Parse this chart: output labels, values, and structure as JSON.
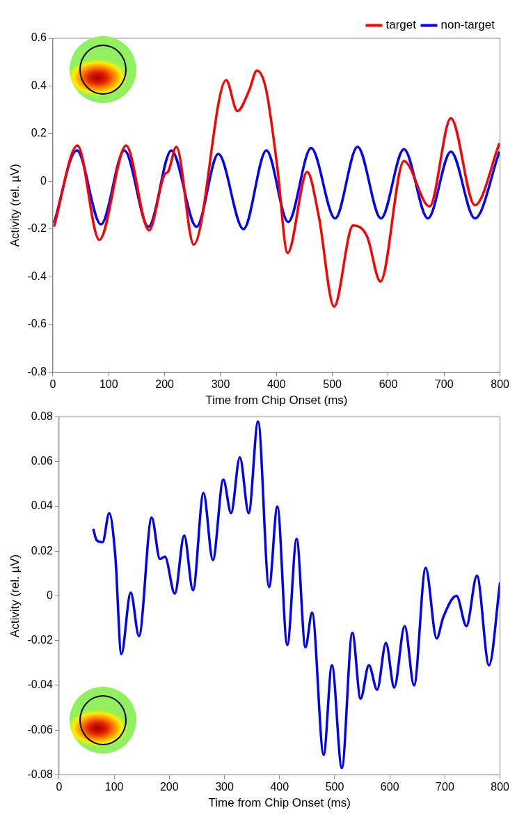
{
  "chart_data": [
    {
      "type": "line",
      "xlabel": "Time from Chip Onset (ms)",
      "ylabel": "Activity (rel. µV)",
      "xlim": [
        0,
        800
      ],
      "xticks": [
        0,
        100,
        200,
        300,
        400,
        500,
        600,
        700,
        800
      ],
      "ylim": [
        -0.8,
        0.6
      ],
      "yticks": [
        -0.8,
        -0.6,
        -0.4,
        -0.2,
        0,
        0.2,
        0.4,
        0.6
      ],
      "grid": false,
      "legend": "top right",
      "marker": "none",
      "line_style": "solid",
      "series": [
        {
          "name": "target",
          "color": "#ff0000",
          "x": [
            2,
            44,
            83,
            131,
            172,
            200,
            206,
            221,
            252,
            310,
            330,
            351,
            365,
            381,
            401,
            420,
            455,
            476,
            503,
            537,
            562,
            586,
            628,
            674,
            712,
            755,
            799
          ],
          "values": [
            -0.19,
            0.15,
            -0.245,
            0.15,
            -0.205,
            0.03,
            0.04,
            0.145,
            -0.265,
            0.425,
            0.295,
            0.38,
            0.465,
            0.39,
            0.07,
            -0.3,
            0.04,
            -0.15,
            -0.525,
            -0.185,
            -0.23,
            -0.42,
            0.085,
            -0.105,
            0.265,
            -0.1,
            0.16
          ]
        },
        {
          "name": "non-target",
          "color": "#0000ff",
          "x": [
            2,
            43,
            86,
            128,
            171,
            212,
            257,
            296,
            341,
            382,
            421,
            462,
            505,
            545,
            587,
            628,
            671,
            712,
            755,
            799
          ],
          "values": [
            -0.175,
            0.13,
            -0.18,
            0.13,
            -0.19,
            0.13,
            -0.19,
            0.115,
            -0.2,
            0.13,
            -0.17,
            0.14,
            -0.155,
            0.145,
            -0.155,
            0.135,
            -0.155,
            0.125,
            -0.155,
            0.125
          ]
        }
      ]
    },
    {
      "type": "line",
      "xlabel": "Time from Chip Onset (ms)",
      "ylabel": "Activity (rel. µV)",
      "xlim": [
        0,
        800
      ],
      "xticks": [
        0,
        100,
        200,
        300,
        400,
        500,
        600,
        700,
        800
      ],
      "ylim": [
        -0.08,
        0.08
      ],
      "yticks": [
        -0.08,
        -0.06,
        -0.04,
        -0.02,
        0,
        0.02,
        0.04,
        0.06,
        0.08
      ],
      "grid": false,
      "legend": false,
      "marker": "none",
      "line_style": "solid",
      "series": [
        {
          "color": "#0000ff",
          "x": [
            62,
            68,
            79,
            91,
            102,
            113,
            130,
            145,
            168,
            183,
            192,
            210,
            227,
            243,
            262,
            279,
            298,
            312,
            328,
            344,
            361,
            381,
            396,
            414,
            431,
            447,
            459,
            480,
            495,
            513,
            532,
            547,
            562,
            577,
            593,
            608,
            627,
            644,
            665,
            685,
            697,
            721,
            739,
            758,
            780,
            800
          ],
          "values": [
            0.03,
            0.025,
            0.024,
            0.037,
            0.018,
            -0.026,
            0.0015,
            -0.018,
            0.035,
            0.0165,
            0.0175,
            0.001,
            0.027,
            0.0025,
            0.046,
            0.016,
            0.052,
            0.037,
            0.062,
            0.037,
            0.078,
            0.004,
            0.04,
            -0.022,
            0.0255,
            -0.023,
            -0.0075,
            -0.071,
            -0.031,
            -0.077,
            -0.0165,
            -0.046,
            -0.031,
            -0.042,
            -0.021,
            -0.041,
            -0.0135,
            -0.04,
            0.0125,
            -0.019,
            -0.0095,
            0,
            -0.0135,
            0.009,
            -0.031,
            0.006
          ]
        }
      ]
    }
  ]
}
